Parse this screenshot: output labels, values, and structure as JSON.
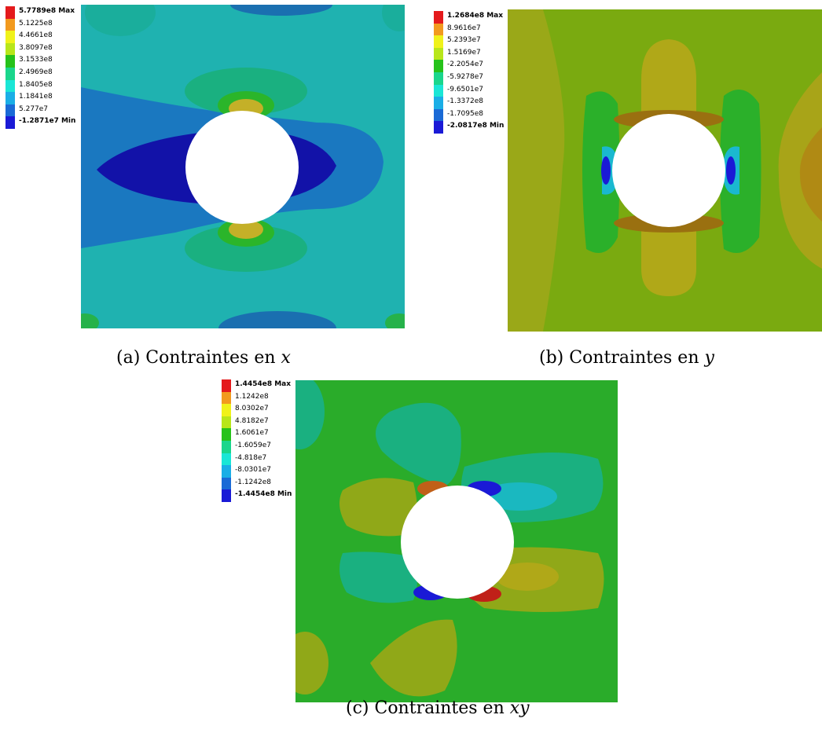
{
  "panels": {
    "a": {
      "caption_prefix": "(a) Contraintes en ",
      "caption_var": "x",
      "legend": [
        {
          "label": "5.7789e8 Max",
          "color": "#e41a1c"
        },
        {
          "label": "5.1225e8",
          "color": "#f29a1e"
        },
        {
          "label": "4.4661e8",
          "color": "#f0f21a"
        },
        {
          "label": "3.8097e8",
          "color": "#b8e61a"
        },
        {
          "label": "3.1533e8",
          "color": "#26c21a"
        },
        {
          "label": "2.4969e8",
          "color": "#1ad68c"
        },
        {
          "label": "1.8405e8",
          "color": "#1ae6d6"
        },
        {
          "label": "1.1841e8",
          "color": "#1aaee6"
        },
        {
          "label": "5.277e7",
          "color": "#1a6ad6"
        },
        {
          "label": "-1.2871e7 Min",
          "color": "#1a1ad6"
        }
      ]
    },
    "b": {
      "caption_prefix": "(b) Contraintes en ",
      "caption_var": "y",
      "legend": [
        {
          "label": "1.2684e8 Max",
          "color": "#e41a1c"
        },
        {
          "label": "8.9616e7",
          "color": "#f29a1e"
        },
        {
          "label": "5.2393e7",
          "color": "#f0f21a"
        },
        {
          "label": "1.5169e7",
          "color": "#b8e61a"
        },
        {
          "label": "-2.2054e7",
          "color": "#26c21a"
        },
        {
          "label": "-5.9278e7",
          "color": "#1ad68c"
        },
        {
          "label": "-9.6501e7",
          "color": "#1ae6d6"
        },
        {
          "label": "-1.3372e8",
          "color": "#1aaee6"
        },
        {
          "label": "-1.7095e8",
          "color": "#1a6ad6"
        },
        {
          "label": "-2.0817e8 Min",
          "color": "#1a1ad6"
        }
      ]
    },
    "c": {
      "caption_prefix": "(c) Contraintes en ",
      "caption_var": "xy",
      "legend": [
        {
          "label": "1.4454e8 Max",
          "color": "#e41a1c"
        },
        {
          "label": "1.1242e8",
          "color": "#f29a1e"
        },
        {
          "label": "8.0302e7",
          "color": "#f0f21a"
        },
        {
          "label": "4.8182e7",
          "color": "#b8e61a"
        },
        {
          "label": "1.6061e7",
          "color": "#26c21a"
        },
        {
          "label": "-1.6059e7",
          "color": "#1ad68c"
        },
        {
          "label": "-4.818e7",
          "color": "#1ae6d6"
        },
        {
          "label": "-8.0301e7",
          "color": "#1aaee6"
        },
        {
          "label": "-1.1242e8",
          "color": "#1a6ad6"
        },
        {
          "label": "-1.4454e8 Min",
          "color": "#1a1ad6"
        }
      ]
    }
  }
}
